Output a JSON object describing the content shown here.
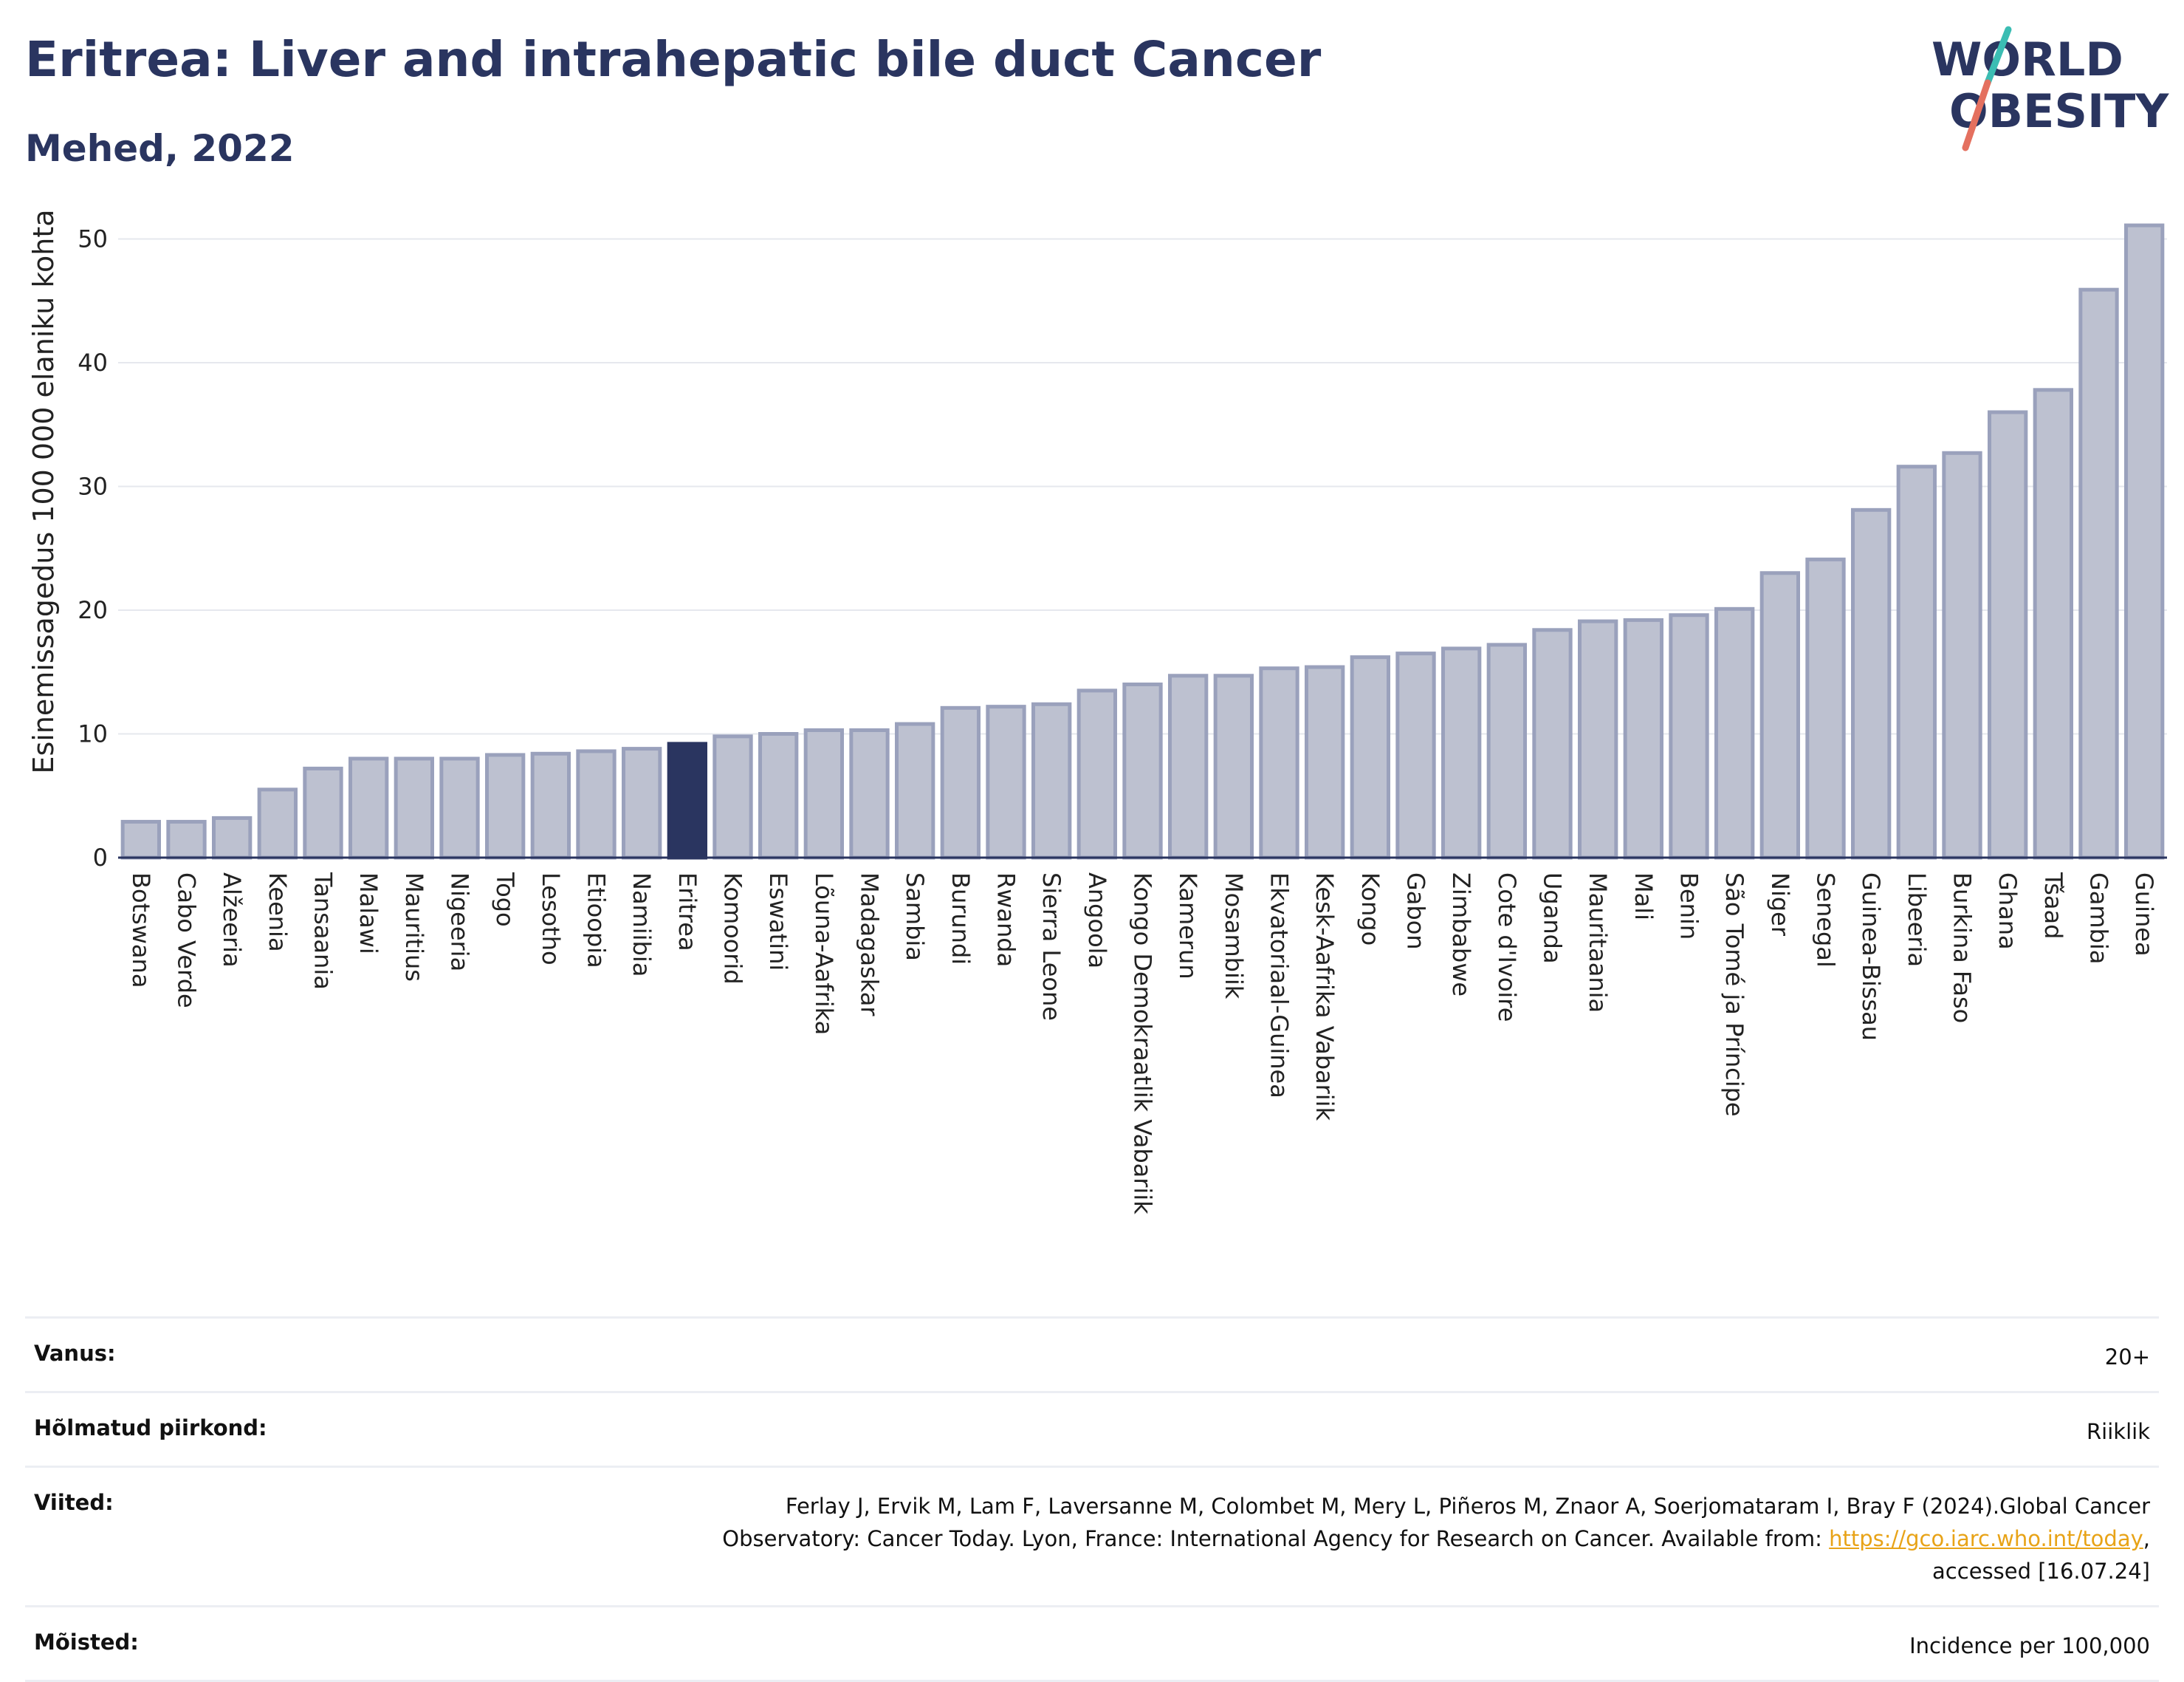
{
  "header": {
    "title": "Eritrea: Liver and intrahepatic bile duct Cancer",
    "subtitle": "Mehed, 2022"
  },
  "logo": {
    "line1": "WORLD",
    "line2": "OBESITY"
  },
  "chart_data": {
    "type": "bar",
    "ylabel": "Esinemissagedus 100 000 elaniku kohta",
    "ylim": [
      0,
      52
    ],
    "yticks": [
      0,
      10,
      20,
      30,
      40,
      50
    ],
    "grid": true,
    "highlight": "Eritrea",
    "categories": [
      "Botswana",
      "Cabo Verde",
      "Alžeeria",
      "Keenia",
      "Tansaania",
      "Malawi",
      "Mauritius",
      "Nigeeria",
      "Togo",
      "Lesotho",
      "Etioopia",
      "Namiibia",
      "Eritrea",
      "Komoorid",
      "Eswatini",
      "Lõuna-Aafrika",
      "Madagaskar",
      "Sambia",
      "Burundi",
      "Rwanda",
      "Sierra Leone",
      "Angoola",
      "Kongo Demokraatlik Vabariik",
      "Kamerun",
      "Mosambiik",
      "Ekvatoriaal-Guinea",
      "Kesk-Aafrika Vabariik",
      "Kongo",
      "Gabon",
      "Zimbabwe",
      "Cote d'Ivoire",
      "Uganda",
      "Mauritaania",
      "Mali",
      "Benin",
      "São Tomé ja Príncipe",
      "Niger",
      "Senegal",
      "Guinea-Bissau",
      "Libeeria",
      "Burkina Faso",
      "Ghana",
      "Tšaad",
      "Gambia",
      "Guinea"
    ],
    "values": [
      2.9,
      2.9,
      3.2,
      5.5,
      7.2,
      8.0,
      8.0,
      8.0,
      8.3,
      8.4,
      8.6,
      8.8,
      9.2,
      9.8,
      10.0,
      10.3,
      10.3,
      10.8,
      12.1,
      12.2,
      12.4,
      13.5,
      14.0,
      14.7,
      14.7,
      15.3,
      15.4,
      16.2,
      16.5,
      16.9,
      17.2,
      18.4,
      19.1,
      19.2,
      19.6,
      20.1,
      23.0,
      24.1,
      28.1,
      31.6,
      32.7,
      36.0,
      37.8,
      45.9,
      51.1
    ],
    "colors": {
      "bar": "#bdc1d0",
      "bar_edge": "#9aa1bc",
      "highlight": "#2a3560",
      "grid": "#e6e8ee",
      "axis": "#2a3560"
    }
  },
  "footer": {
    "age_label": "Vanus:",
    "age_value": "20+",
    "region_label": "Hõlmatud piirkond:",
    "region_value": "Riiklik",
    "refs_label": "Viited:",
    "refs_text1": "Ferlay J, Ervik M, Lam F, Laversanne M, Colombet M, Mery L, Piñeros M, Znaor A, Soerjomataram I, Bray F (2024).Global Cancer",
    "refs_text2": "Observatory: Cancer Today. Lyon, France: International Agency for Research on Cancer. Available from: ",
    "refs_link": "https://gco.iarc.who.int/today",
    "refs_text3": ",",
    "refs_text4": "accessed [16.07.24]",
    "defs_label": "Mõisted:",
    "defs_value": "Incidence per 100,000"
  }
}
